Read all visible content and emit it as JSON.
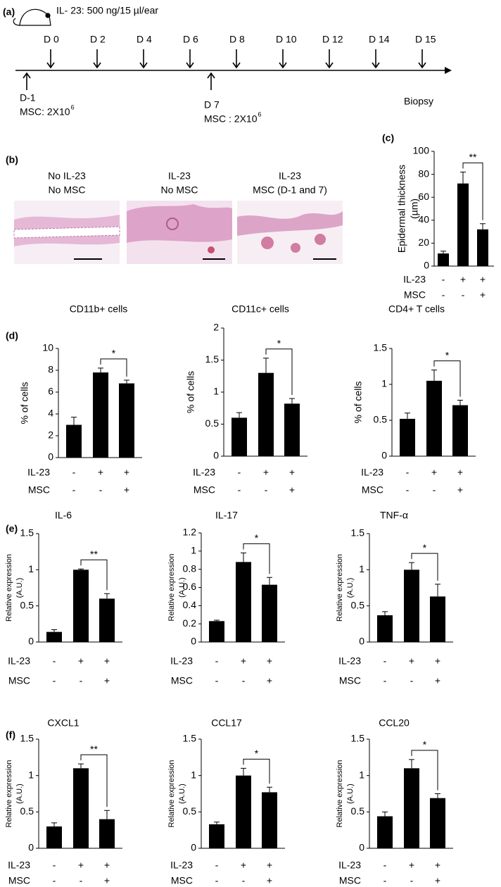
{
  "timeline": {
    "panel": "(a)",
    "dose": "IL- 23: 500 ng/15 µl/ear",
    "days": [
      "D 0",
      "D 2",
      "D 4",
      "D 6",
      "D 8",
      "D 10",
      "D 12",
      "D 14",
      "D 15"
    ],
    "injections": [
      {
        "day": "D-1",
        "text": "MSC: 2X10",
        "exponent": "6"
      },
      {
        "day": "D 7",
        "text": "MSC : 2X10",
        "exponent": "6"
      }
    ],
    "end": "Biopsy"
  },
  "histology": {
    "panel": "(b)",
    "images": [
      {
        "lines": [
          "No IL-23",
          "No MSC"
        ]
      },
      {
        "lines": [
          "IL-23",
          "No MSC"
        ]
      },
      {
        "lines": [
          "IL-23",
          "MSC (D-1 and 7)"
        ]
      }
    ]
  },
  "chart_data": [
    {
      "type": "bar",
      "panel": "(c)",
      "ylabel": [
        "Epidermal thickness",
        "(µm)"
      ],
      "ylim": [
        0,
        100
      ],
      "yticks": [
        0,
        20,
        40,
        60,
        80,
        100
      ],
      "values": [
        11,
        72,
        32
      ],
      "errors": [
        2,
        10,
        5
      ],
      "color": "#000000",
      "significance": "**",
      "treatments": [
        {
          "name": "IL-23",
          "marks": [
            "-",
            "+",
            "+"
          ]
        },
        {
          "name": "MSC",
          "marks": [
            "-",
            "-",
            "+"
          ]
        }
      ]
    },
    {
      "type": "bar",
      "panel": "(d)",
      "title": "CD11b+ cells",
      "ylabel": [
        "% of cells"
      ],
      "ylim": [
        0,
        10
      ],
      "yticks": [
        0,
        2,
        4,
        6,
        8,
        10
      ],
      "values": [
        3.0,
        7.8,
        6.8
      ],
      "errors": [
        0.7,
        0.4,
        0.3
      ],
      "color": "#000000",
      "significance": "*",
      "treatments": [
        {
          "name": "IL-23",
          "marks": [
            "-",
            "+",
            "+"
          ]
        },
        {
          "name": "MSC",
          "marks": [
            "-",
            "-",
            "+"
          ]
        }
      ]
    },
    {
      "type": "bar",
      "title": "CD11c+ cells",
      "ylabel": [
        "% of cells"
      ],
      "ylim": [
        0,
        2
      ],
      "yticks": [
        0,
        0.5,
        1,
        1.5,
        2
      ],
      "values": [
        0.6,
        1.3,
        0.82
      ],
      "errors": [
        0.08,
        0.23,
        0.08
      ],
      "color": "#000000",
      "significance": "*",
      "treatments": [
        {
          "name": "IL-23",
          "marks": [
            "-",
            "+",
            "+"
          ]
        },
        {
          "name": "MSC",
          "marks": [
            "-",
            "-",
            "+"
          ]
        }
      ]
    },
    {
      "type": "bar",
      "title": "CD4+ T cells",
      "ylabel": [
        "% of cells"
      ],
      "ylim": [
        0,
        1.5
      ],
      "yticks": [
        0,
        0.5,
        1,
        1.5
      ],
      "values": [
        0.52,
        1.05,
        0.71
      ],
      "errors": [
        0.08,
        0.15,
        0.07
      ],
      "color": "#000000",
      "significance": "*",
      "treatments": [
        {
          "name": "IL-23",
          "marks": [
            "-",
            "+",
            "+"
          ]
        },
        {
          "name": "MSC",
          "marks": [
            "-",
            "-",
            "+"
          ]
        }
      ]
    },
    {
      "type": "bar",
      "panel": "(e)",
      "title": "IL-6",
      "ylabel": [
        "Relative expression",
        "(A.U.)"
      ],
      "ylim": [
        0,
        1.5
      ],
      "yticks": [
        0,
        0.5,
        1,
        1.5
      ],
      "values": [
        0.14,
        1.0,
        0.6
      ],
      "errors": [
        0.03,
        0.01,
        0.07
      ],
      "color": "#000000",
      "significance": "**",
      "treatments": [
        {
          "name": "IL-23",
          "marks": [
            "-",
            "+",
            "+"
          ]
        },
        {
          "name": "MSC",
          "marks": [
            "-",
            "-",
            "+"
          ]
        }
      ]
    },
    {
      "type": "bar",
      "title": "IL-17",
      "ylabel": [
        "Relative expression",
        "(A.U.)"
      ],
      "ylim": [
        0,
        1.2
      ],
      "yticks": [
        0,
        0.2,
        0.4,
        0.6,
        0.8,
        1,
        1.2
      ],
      "values": [
        0.23,
        0.88,
        0.63
      ],
      "errors": [
        0.01,
        0.1,
        0.08
      ],
      "color": "#000000",
      "significance": "*",
      "treatments": [
        {
          "name": "IL-23",
          "marks": [
            "-",
            "+",
            "+"
          ]
        },
        {
          "name": "MSC",
          "marks": [
            "-",
            "-",
            "+"
          ]
        }
      ]
    },
    {
      "type": "bar",
      "title": "TNF-α",
      "ylabel": [
        "Relative expression",
        "(A.U.)"
      ],
      "ylim": [
        0,
        1.5
      ],
      "yticks": [
        0,
        0.5,
        1,
        1.5
      ],
      "values": [
        0.37,
        1.0,
        0.63
      ],
      "errors": [
        0.05,
        0.1,
        0.17
      ],
      "color": "#000000",
      "significance": "*",
      "treatments": [
        {
          "name": "IL-23",
          "marks": [
            "-",
            "+",
            "+"
          ]
        },
        {
          "name": "MSC",
          "marks": [
            "-",
            "-",
            "+"
          ]
        }
      ]
    },
    {
      "type": "bar",
      "panel": "(f)",
      "title": "CXCL1",
      "ylabel": [
        "Relative expression",
        "(A.U.)"
      ],
      "ylim": [
        0,
        1.5
      ],
      "yticks": [
        0,
        0.5,
        1,
        1.5
      ],
      "values": [
        0.3,
        1.1,
        0.4
      ],
      "errors": [
        0.05,
        0.06,
        0.12
      ],
      "color": "#000000",
      "significance": "**",
      "treatments": [
        {
          "name": "IL-23",
          "marks": [
            "-",
            "+",
            "+"
          ]
        },
        {
          "name": "MSC",
          "marks": [
            "-",
            "-",
            "+"
          ]
        }
      ]
    },
    {
      "type": "bar",
      "title": "CCL17",
      "ylabel": [
        "Relative expression",
        "(A.U.)"
      ],
      "ylim": [
        0,
        1.5
      ],
      "yticks": [
        0,
        0.5,
        1,
        1.5
      ],
      "values": [
        0.33,
        1.0,
        0.77
      ],
      "errors": [
        0.03,
        0.1,
        0.07
      ],
      "color": "#000000",
      "significance": "*",
      "treatments": [
        {
          "name": "IL-23",
          "marks": [
            "-",
            "+",
            "+"
          ]
        },
        {
          "name": "MSC",
          "marks": [
            "-",
            "-",
            "+"
          ]
        }
      ]
    },
    {
      "type": "bar",
      "title": "CCL20",
      "ylabel": [
        "Relative expression",
        "(A.U.)"
      ],
      "ylim": [
        0,
        1.5
      ],
      "yticks": [
        0,
        0.5,
        1,
        1.5
      ],
      "values": [
        0.44,
        1.1,
        0.69
      ],
      "errors": [
        0.06,
        0.12,
        0.06
      ],
      "color": "#000000",
      "significance": "*",
      "treatments": [
        {
          "name": "IL-23",
          "marks": [
            "-",
            "+",
            "+"
          ]
        },
        {
          "name": "MSC",
          "marks": [
            "-",
            "-",
            "+"
          ]
        }
      ]
    }
  ]
}
